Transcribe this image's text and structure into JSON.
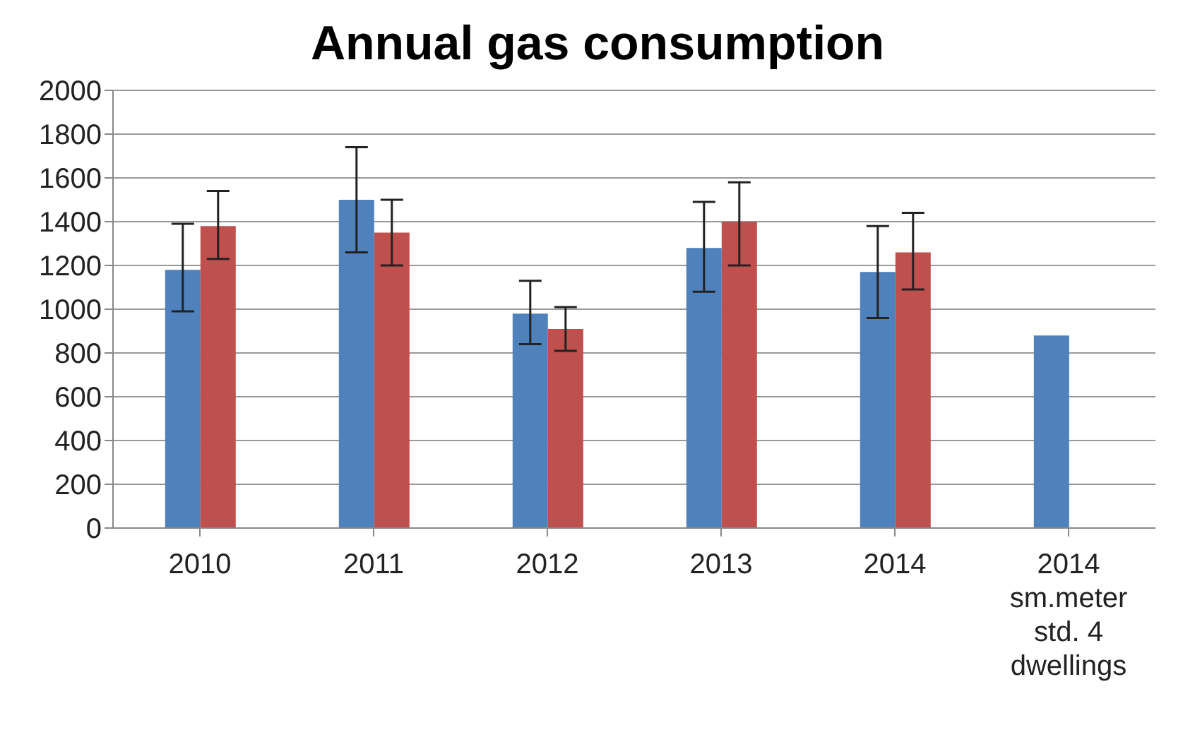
{
  "chart_data": {
    "type": "bar",
    "title": "Annual gas consumption",
    "categories": [
      "2010",
      "2011",
      "2012",
      "2013",
      "2014",
      "2014\nsm.meter\nstd. 4\ndwellings"
    ],
    "series": [
      {
        "color": "#4f81bd",
        "values": [
          1180,
          1500,
          980,
          1280,
          1170,
          880
        ],
        "errors": [
          [
            990,
            1390
          ],
          [
            1260,
            1740
          ],
          [
            840,
            1130
          ],
          [
            1080,
            1490
          ],
          [
            960,
            1380
          ],
          null
        ]
      },
      {
        "color": "#c0504d",
        "values": [
          1380,
          1350,
          910,
          1400,
          1260,
          null
        ],
        "errors": [
          [
            1230,
            1540
          ],
          [
            1200,
            1500
          ],
          [
            810,
            1010
          ],
          [
            1200,
            1580
          ],
          [
            1090,
            1440
          ],
          null
        ]
      }
    ],
    "ylim": [
      0,
      2000
    ],
    "yticks": [
      0,
      200,
      400,
      600,
      800,
      1000,
      1200,
      1400,
      1600,
      1800,
      2000
    ],
    "grid": "y"
  }
}
